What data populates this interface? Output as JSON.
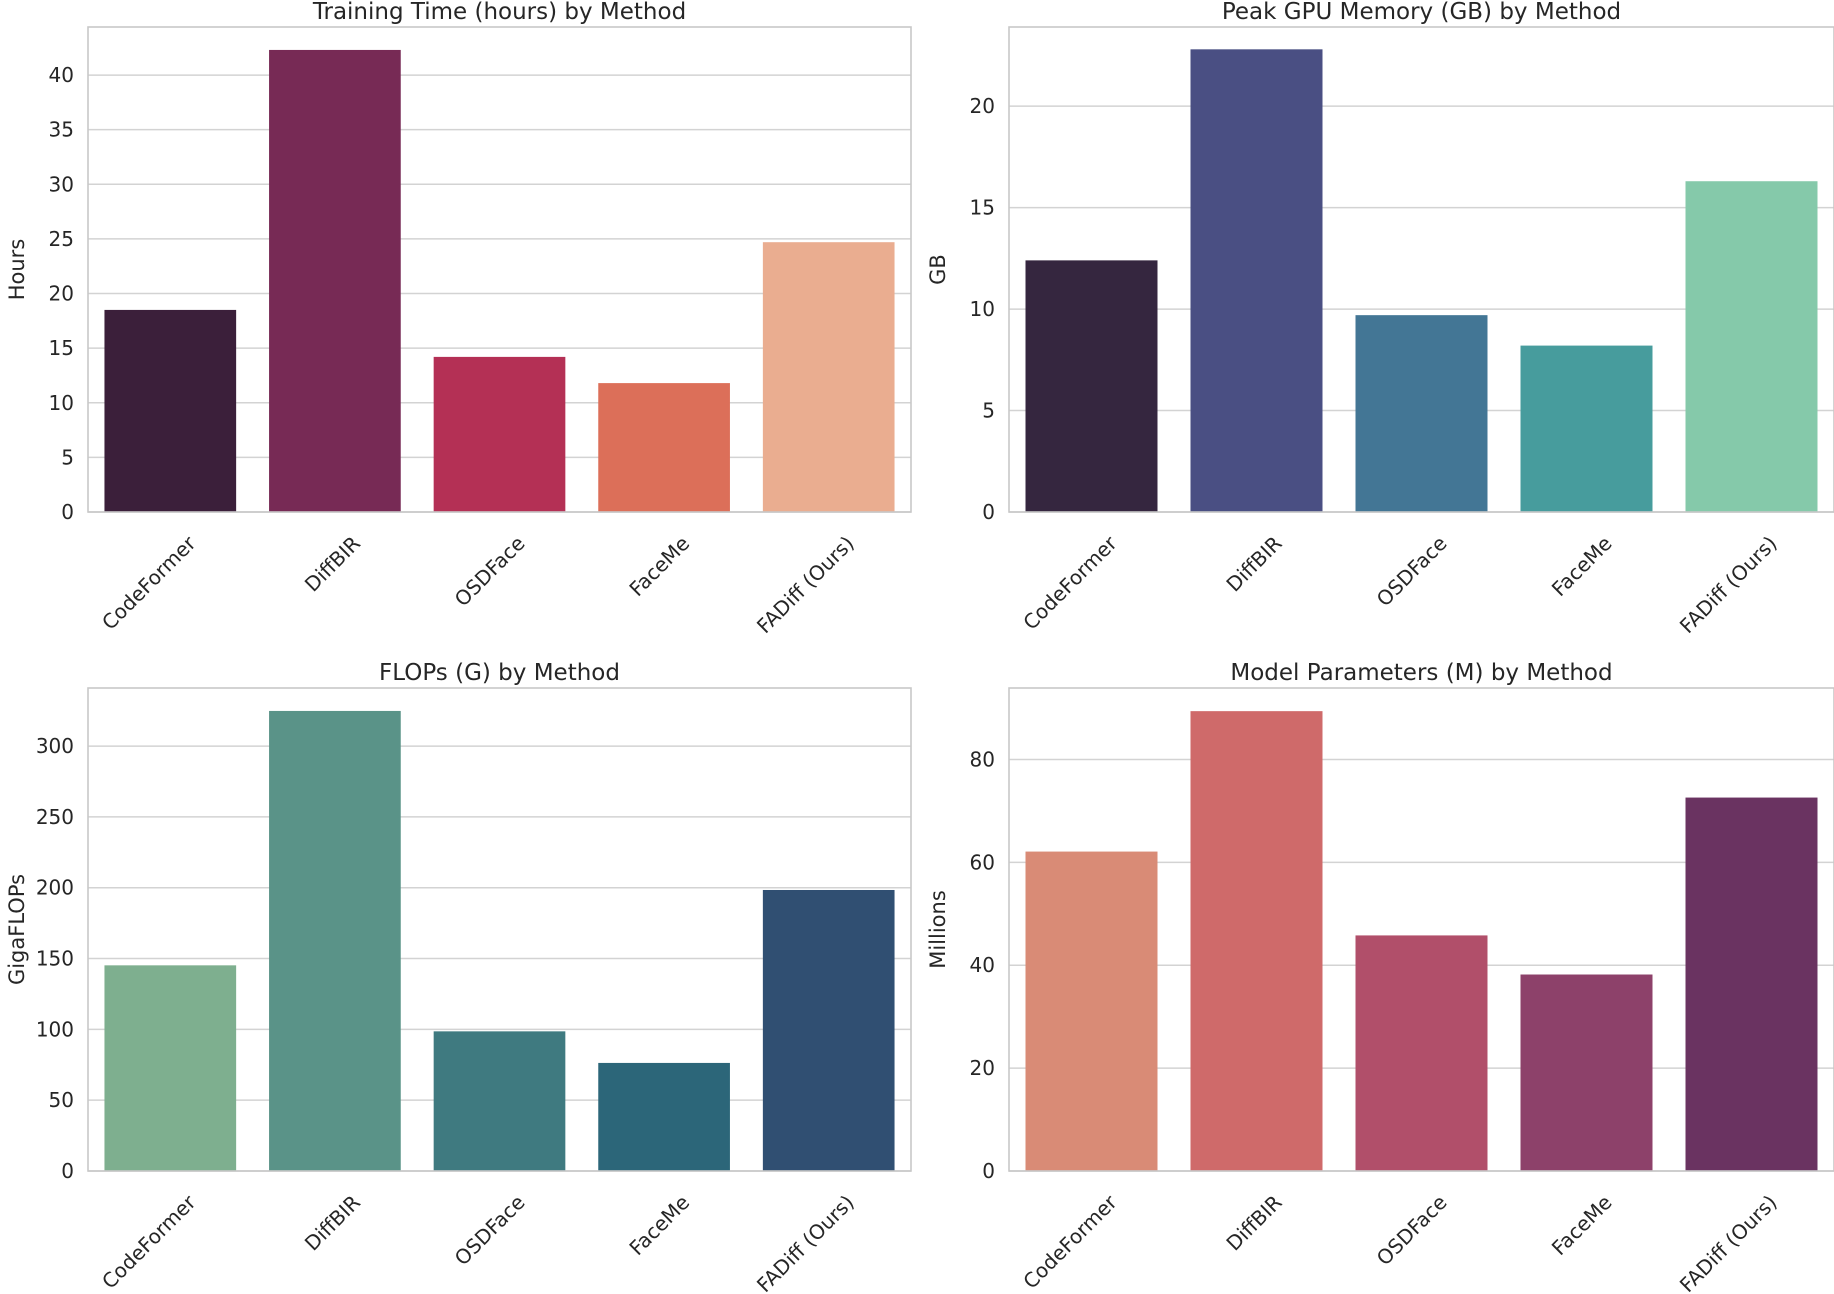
{
  "chart_data": [
    {
      "type": "bar",
      "title": "Training Time (hours) by Method",
      "xlabel": "",
      "ylabel": "Hours",
      "categories": [
        "CodeFormer",
        "DiffBIR",
        "OSDFace",
        "FaceMe",
        "FADiff (Ours)"
      ],
      "values": [
        18.5,
        42.3,
        14.2,
        11.8,
        24.7
      ],
      "colors": [
        "#3b1f3a",
        "#772a55",
        "#b43055",
        "#dc6f59",
        "#eaad90"
      ],
      "ylim": [
        0,
        44.4
      ],
      "yticks": [
        0,
        5,
        10,
        15,
        20,
        25,
        30,
        35,
        40
      ],
      "grid": true
    },
    {
      "type": "bar",
      "title": "Peak GPU Memory (GB) by Method",
      "xlabel": "",
      "ylabel": "GB",
      "categories": [
        "CodeFormer",
        "DiffBIR",
        "OSDFace",
        "FaceMe",
        "FADiff (Ours)"
      ],
      "values": [
        12.4,
        22.8,
        9.7,
        8.2,
        16.3
      ],
      "colors": [
        "#35263f",
        "#4a4f83",
        "#437695",
        "#479c9d",
        "#85c9aa"
      ],
      "ylim": [
        0,
        23.9
      ],
      "yticks": [
        0,
        5,
        10,
        15,
        20
      ],
      "grid": true
    },
    {
      "type": "bar",
      "title": "FLOPs (G) by Method",
      "xlabel": "",
      "ylabel": "GigaFLOPs",
      "categories": [
        "CodeFormer",
        "DiffBIR",
        "OSDFace",
        "FaceMe",
        "FADiff (Ours)"
      ],
      "values": [
        145.2,
        324.8,
        98.6,
        76.3,
        198.4
      ],
      "colors": [
        "#7eaf8f",
        "#5a9388",
        "#3f7a80",
        "#2c6679",
        "#304f72"
      ],
      "ylim": [
        0,
        341
      ],
      "yticks": [
        0,
        50,
        100,
        150,
        200,
        250,
        300
      ],
      "grid": true
    },
    {
      "type": "bar",
      "title": "Model Parameters (M) by Method",
      "xlabel": "",
      "ylabel": "Millions",
      "categories": [
        "CodeFormer",
        "DiffBIR",
        "OSDFace",
        "FaceMe",
        "FADiff (Ours)"
      ],
      "values": [
        62.1,
        89.4,
        45.8,
        38.2,
        72.6
      ],
      "colors": [
        "#d98b76",
        "#cf6a6a",
        "#b14f6a",
        "#8d416a",
        "#6a3361"
      ],
      "ylim": [
        0,
        93.9
      ],
      "yticks": [
        0,
        20,
        40,
        60,
        80
      ],
      "grid": true
    }
  ]
}
